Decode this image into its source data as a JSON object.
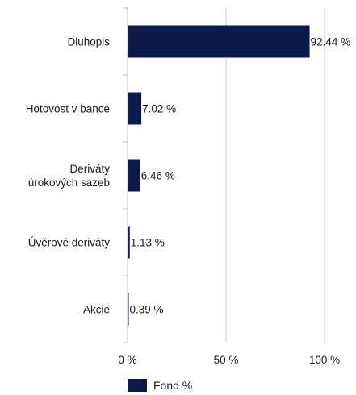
{
  "chart_data": {
    "type": "bar",
    "orientation": "horizontal",
    "categories": [
      [
        "Dluhopis"
      ],
      [
        "Hotovost v bance"
      ],
      [
        "Deriváty",
        "úrokových sazeb"
      ],
      [
        "Úvěrové deriváty"
      ],
      [
        "Akcie"
      ]
    ],
    "series": [
      {
        "name": "Fond %",
        "values": [
          92.44,
          7.02,
          6.46,
          1.13,
          0.39
        ]
      }
    ],
    "value_labels": [
      "92.44 %",
      "7.02 %",
      "6.46 %",
      "1.13 %",
      "0.39 %"
    ],
    "x_ticks": [
      0,
      50,
      100
    ],
    "x_tick_labels": [
      "0 %",
      "50 %",
      "100 %"
    ],
    "xlim": [
      0,
      100
    ],
    "grid": "vertical",
    "legend_position": "bottom",
    "colors": {
      "bar": "#0b1a4a",
      "grid": "#c8d0da",
      "axis": "#b8c2ce"
    }
  }
}
